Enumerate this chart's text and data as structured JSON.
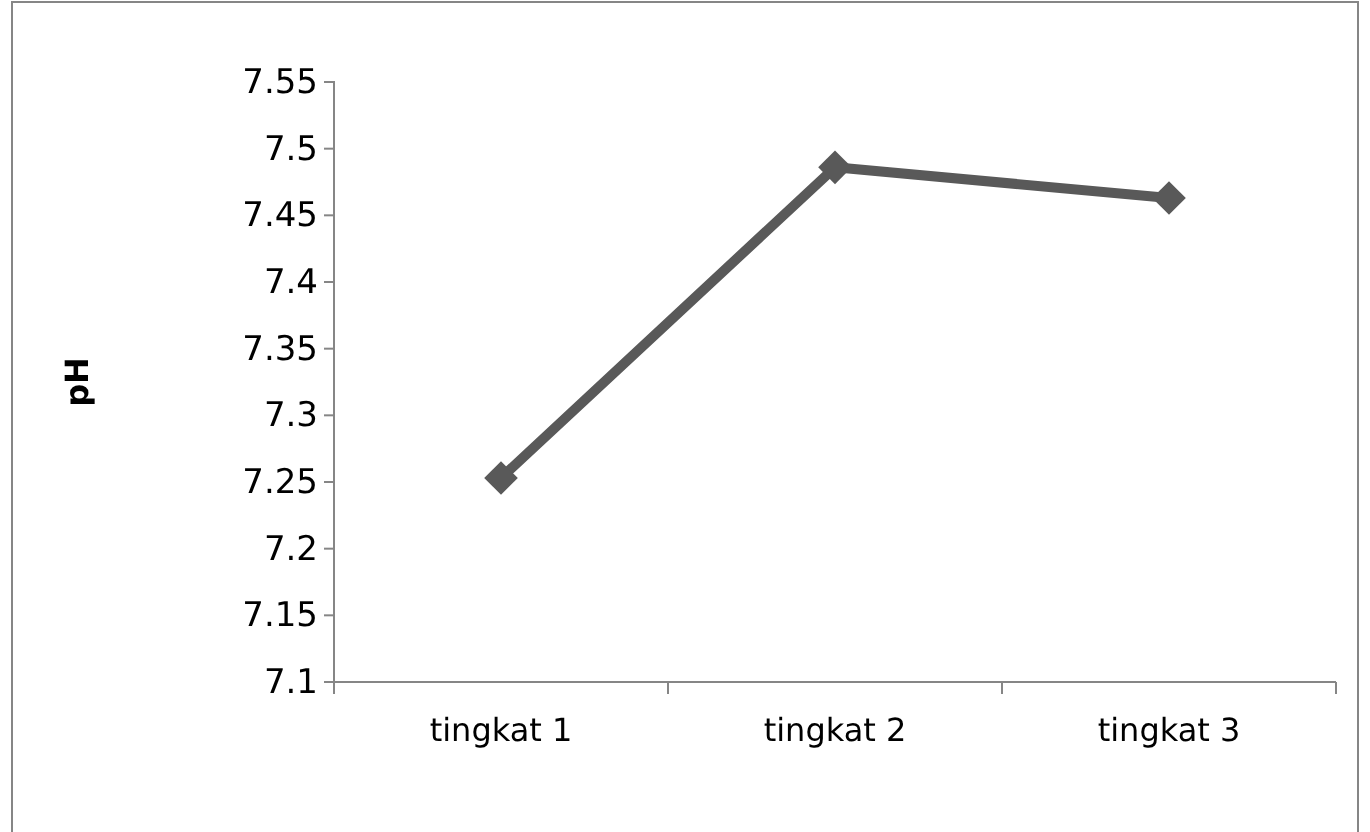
{
  "chart_data": {
    "type": "line",
    "ylabel": "pH",
    "categories": [
      "tingkat 1",
      "tingkat 2",
      "tingkat 3"
    ],
    "series": [
      {
        "color": "#595959",
        "values": [
          7.253,
          7.486,
          7.463
        ]
      }
    ],
    "ylim": [
      7.1,
      7.55
    ],
    "yticks": [
      7.1,
      7.15,
      7.2,
      7.25,
      7.3,
      7.35,
      7.4,
      7.45,
      7.5,
      7.55
    ],
    "marker": "diamond",
    "line_style": "solid",
    "grid": false,
    "legend": false
  }
}
